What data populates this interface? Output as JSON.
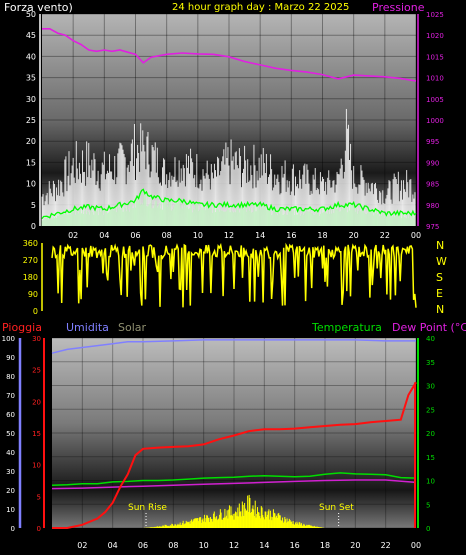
{
  "header": {
    "left_label": "Forza vento)",
    "title": "24 hour graph day : Marzo 22 2025",
    "right_label": "Pressione"
  },
  "bottom_header": {
    "rain_label": "Pioggia",
    "humidity_label": "Umidita",
    "solar_label": "Solar",
    "temp_label": "Temperatura",
    "dew_label": "Dew Point (°C)"
  },
  "compass": [
    "N",
    "W",
    "S",
    "E",
    "N"
  ],
  "annotations": {
    "sunrise": "Sun Rise",
    "sunset": "Sun Set"
  },
  "colors": {
    "wind_gust": "#ffffff",
    "wind_avg": "#00ff00",
    "wind_fill": "#c8f0c8",
    "pressure": "#e020e0",
    "direction": "#ffff00",
    "rain": "#ff1010",
    "humidity": "#8080ff",
    "solar": "#ffff00",
    "temperature": "#00dd00",
    "dewpoint": "#d020d0",
    "header_left": "#ffffff",
    "header_title": "#ffff00"
  },
  "chart_data": [
    {
      "type": "line",
      "name": "wind_pressure",
      "x_ticks": [
        "02",
        "04",
        "06",
        "08",
        "10",
        "12",
        "14",
        "16",
        "18",
        "20",
        "22",
        "00"
      ],
      "y_left_ticks": [
        0,
        5,
        10,
        15,
        20,
        25,
        30,
        35,
        40,
        45,
        50
      ],
      "y_right_ticks": [
        975,
        980,
        985,
        990,
        995,
        1000,
        1005,
        1010,
        1015,
        1020,
        1025
      ],
      "ylim_left": [
        0,
        50
      ],
      "ylim_right": [
        975,
        1025
      ],
      "xlim": [
        0,
        24
      ],
      "series": [
        {
          "name": "Pressione",
          "axis": "right",
          "x": [
            0,
            0.5,
            1,
            1.5,
            2,
            2.5,
            3,
            3.5,
            4,
            4.5,
            5,
            5.5,
            6,
            6.5,
            7,
            8,
            9,
            10,
            11,
            12,
            13,
            14,
            15,
            16,
            17,
            18,
            19,
            20,
            21,
            22,
            23,
            24
          ],
          "values": [
            1021.5,
            1021.5,
            1020.5,
            1020,
            1018.7,
            1017.8,
            1016.5,
            1016.2,
            1016.5,
            1016.2,
            1016.5,
            1016,
            1015.5,
            1013.5,
            1014.8,
            1015.5,
            1015.8,
            1015.6,
            1015.5,
            1014.9,
            1013.8,
            1013,
            1012.2,
            1011.7,
            1011.3,
            1010.7,
            1009.7,
            1010.6,
            1010.4,
            1010.2,
            1009.8,
            1009.2
          ]
        },
        {
          "name": "gust_envelope",
          "axis": "left",
          "x": [
            0,
            1,
            2,
            3,
            4,
            5,
            6,
            6.5,
            7,
            8,
            9,
            10,
            11,
            12,
            13,
            14,
            15,
            16,
            17,
            18,
            19,
            19.5,
            20,
            21,
            22,
            23,
            24
          ],
          "values": [
            10,
            13,
            20,
            21,
            18,
            20,
            25,
            24,
            23,
            16,
            20,
            18,
            15,
            21,
            19,
            20,
            17,
            16,
            15,
            13,
            14,
            30,
            15,
            14,
            10,
            14,
            13
          ]
        },
        {
          "name": "avg_wind",
          "axis": "left",
          "x": [
            0,
            1,
            2,
            3,
            4,
            5,
            6,
            6.5,
            7,
            8,
            9,
            10,
            11,
            12,
            13,
            14,
            15,
            16,
            17,
            18,
            19,
            20,
            21,
            22,
            23,
            24
          ],
          "values": [
            2,
            3,
            4,
            4.5,
            4,
            5,
            6,
            8.5,
            7,
            6,
            6,
            5,
            5,
            5,
            5,
            5,
            4,
            4,
            4,
            4,
            5,
            5,
            4,
            3,
            3,
            3
          ]
        }
      ]
    },
    {
      "type": "line",
      "name": "wind_direction",
      "y_ticks": [
        0,
        90,
        180,
        270,
        360
      ],
      "ylim": [
        0,
        360
      ],
      "xlim": [
        0,
        24
      ],
      "mean_direction_deg": 315
    },
    {
      "type": "line",
      "name": "rain_hum_temp",
      "x_ticks": [
        "02",
        "04",
        "06",
        "08",
        "10",
        "12",
        "14",
        "16",
        "18",
        "20",
        "22",
        "00"
      ],
      "y_left_hum_ticks": [
        0,
        10,
        20,
        30,
        40,
        50,
        60,
        70,
        80,
        90,
        100
      ],
      "y_left_rain_ticks": [
        0,
        5,
        10,
        15,
        20,
        25,
        30
      ],
      "y_right_ticks": [
        0,
        5,
        10,
        15,
        20,
        25,
        30,
        35,
        40
      ],
      "ylim_hum": [
        0,
        100
      ],
      "ylim_rain": [
        0,
        30
      ],
      "ylim_temp": [
        0,
        40
      ],
      "xlim": [
        0,
        24
      ],
      "series": [
        {
          "name": "Pioggia",
          "axis": "rain",
          "x": [
            0,
            1,
            2,
            3,
            3.5,
            4,
            4.5,
            5,
            5.5,
            6,
            7,
            8,
            9,
            10,
            11,
            12,
            13,
            14,
            15,
            16,
            17,
            18,
            19,
            20,
            21,
            22,
            23,
            23.5,
            24
          ],
          "values": [
            0,
            0,
            0.5,
            1.5,
            2.5,
            4,
            6.5,
            8.5,
            11.5,
            12.5,
            12.7,
            12.8,
            12.9,
            13.2,
            14,
            14.6,
            15.3,
            15.6,
            15.6,
            15.7,
            15.9,
            16.1,
            16.3,
            16.4,
            16.7,
            16.9,
            17.1,
            21,
            23
          ]
        },
        {
          "name": "Umidita",
          "axis": "hum",
          "x": [
            0,
            1,
            2,
            3,
            4,
            5,
            6,
            8,
            10,
            12,
            14,
            16,
            18,
            20,
            22,
            24
          ],
          "values": [
            92,
            94,
            95,
            96,
            97,
            98,
            98,
            98.5,
            99,
            99,
            99,
            99,
            99,
            99,
            98.5,
            98.5
          ]
        },
        {
          "name": "Temperatura",
          "axis": "temp",
          "x": [
            0,
            1,
            2,
            3,
            4,
            5,
            6,
            7,
            8,
            9,
            10,
            11,
            12,
            13,
            14,
            15,
            16,
            17,
            18,
            19,
            20,
            21,
            22,
            23,
            24
          ],
          "values": [
            9,
            9.1,
            9.3,
            9.3,
            9.7,
            9.8,
            10,
            10,
            10.1,
            10.3,
            10.5,
            10.6,
            10.7,
            10.9,
            11,
            10.9,
            10.8,
            10.9,
            11.3,
            11.6,
            11.4,
            11.3,
            11.2,
            10.6,
            10.5
          ]
        },
        {
          "name": "Dew Point",
          "axis": "temp",
          "x": [
            0,
            2,
            4,
            6,
            8,
            10,
            12,
            14,
            16,
            18,
            20,
            22,
            24
          ],
          "values": [
            8.3,
            8.4,
            8.6,
            8.8,
            9,
            9.2,
            9.4,
            9.6,
            9.8,
            10,
            10.1,
            10.1,
            9.6
          ]
        },
        {
          "name": "Solar",
          "axis": "temp",
          "x": [
            6,
            7,
            8,
            9,
            10,
            11,
            11.5,
            12,
            12.5,
            13,
            13.5,
            14,
            14.5,
            15,
            16,
            17,
            18
          ],
          "values": [
            0,
            0.3,
            0.8,
            1.4,
            2.2,
            3,
            3.8,
            3.5,
            4.5,
            5.5,
            4.2,
            3.6,
            3.2,
            2.5,
            1.2,
            0.5,
            0
          ]
        }
      ],
      "sunrise_hour": 6.2,
      "sunset_hour": 18.9
    }
  ]
}
